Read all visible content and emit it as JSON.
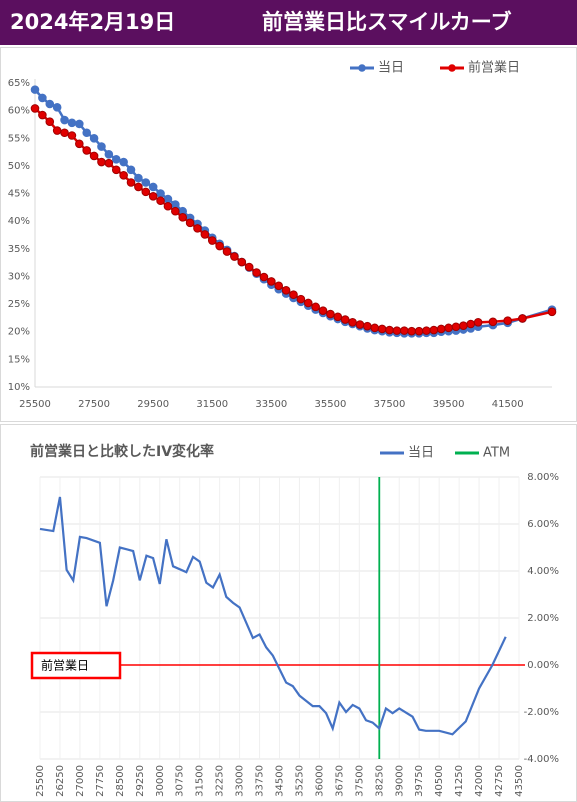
{
  "header": {
    "date": "2024年2月19日",
    "title": "前営業日比スマイルカーブ"
  },
  "chart_data": [
    {
      "type": "line",
      "markers": true,
      "grid": false,
      "legend": "top",
      "x": [
        25500,
        25750,
        26000,
        26250,
        26500,
        26750,
        27000,
        27250,
        27500,
        27750,
        28000,
        28250,
        28500,
        28750,
        29000,
        29250,
        29500,
        29750,
        30000,
        30250,
        30500,
        30750,
        31000,
        31250,
        31500,
        31750,
        32000,
        32250,
        32500,
        32750,
        33000,
        33250,
        33500,
        33750,
        34000,
        34250,
        34500,
        34750,
        35000,
        35250,
        35500,
        35750,
        36000,
        36250,
        36500,
        36750,
        37000,
        37250,
        37500,
        37750,
        38000,
        38250,
        38500,
        38750,
        39000,
        39250,
        39500,
        39750,
        40000,
        40250,
        40500,
        41000,
        41500,
        42000,
        43000
      ],
      "series": [
        {
          "name": "当日",
          "color": "#4472c4",
          "values": [
            63.8,
            62.3,
            61.2,
            60.6,
            58.3,
            57.8,
            57.6,
            56.0,
            55.0,
            53.5,
            52.1,
            51.2,
            50.7,
            49.3,
            47.8,
            47.0,
            46.2,
            45.0,
            44.0,
            43.0,
            41.8,
            40.6,
            39.5,
            38.3,
            37.0,
            35.9,
            34.8,
            33.7,
            32.6,
            31.6,
            30.5,
            29.5,
            28.5,
            27.7,
            26.9,
            26.1,
            25.4,
            24.7,
            24.0,
            23.4,
            22.8,
            22.3,
            21.8,
            21.4,
            21.0,
            20.6,
            20.3,
            20.1,
            19.9,
            19.8,
            19.7,
            19.7,
            19.7,
            19.8,
            19.8,
            20.0,
            20.1,
            20.2,
            20.4,
            20.6,
            20.9,
            21.2,
            21.6,
            22.4,
            24.0
          ]
        },
        {
          "name": "前営業日",
          "color": "#e00000",
          "values": [
            60.4,
            59.2,
            58.0,
            56.4,
            56.0,
            55.5,
            54.0,
            52.8,
            51.8,
            50.7,
            50.5,
            49.3,
            48.3,
            47.0,
            46.2,
            45.3,
            44.5,
            43.7,
            42.7,
            41.8,
            40.7,
            39.7,
            38.7,
            37.6,
            36.5,
            35.5,
            34.5,
            33.6,
            32.6,
            31.7,
            30.7,
            29.9,
            29.1,
            28.3,
            27.5,
            26.7,
            25.9,
            25.2,
            24.5,
            23.8,
            23.2,
            22.7,
            22.2,
            21.7,
            21.3,
            21.0,
            20.7,
            20.5,
            20.3,
            20.2,
            20.2,
            20.1,
            20.1,
            20.2,
            20.3,
            20.5,
            20.7,
            20.9,
            21.1,
            21.4,
            21.7,
            21.8,
            22.0,
            22.4,
            23.6
          ]
        }
      ],
      "xlim": [
        25500,
        43000
      ],
      "xticks": [
        25500,
        27500,
        29500,
        31500,
        33500,
        35500,
        37500,
        39500,
        41500
      ],
      "ylim": [
        10,
        65
      ],
      "yticks": [
        {
          "value": 10,
          "label": "10%"
        },
        {
          "value": 15,
          "label": "15%"
        },
        {
          "value": 20,
          "label": "20%"
        },
        {
          "value": 25,
          "label": "25%"
        },
        {
          "value": 30,
          "label": "30%"
        },
        {
          "value": 35,
          "label": "35%"
        },
        {
          "value": 40,
          "label": "40%"
        },
        {
          "value": 45,
          "label": "45%"
        },
        {
          "value": 50,
          "label": "50%"
        },
        {
          "value": 55,
          "label": "55%"
        },
        {
          "value": 60,
          "label": "60%"
        },
        {
          "value": 65,
          "label": "65%"
        }
      ]
    },
    {
      "type": "line",
      "markers": false,
      "grid": true,
      "legend": "top",
      "title": "前営業日と比較したIV変化率",
      "x": [
        25500,
        26000,
        26250,
        26500,
        26750,
        27000,
        27250,
        27750,
        28000,
        28250,
        28500,
        29000,
        29250,
        29500,
        29750,
        30000,
        30250,
        30500,
        31000,
        31250,
        31500,
        31750,
        32000,
        32250,
        32500,
        32750,
        33000,
        33500,
        33750,
        34000,
        34250,
        34750,
        35000,
        35250,
        35750,
        36000,
        36250,
        36500,
        36750,
        37000,
        37250,
        37500,
        37750,
        38000,
        38250,
        38500,
        38750,
        39000,
        39500,
        39750,
        40000,
        40500,
        41000,
        41500,
        42000,
        42500,
        43000
      ],
      "series": [
        {
          "name": "当日",
          "color": "#4472c4",
          "values": [
            5.79,
            5.7,
            7.15,
            4.05,
            3.6,
            5.45,
            5.4,
            5.2,
            2.5,
            3.6,
            5.0,
            4.85,
            3.6,
            4.65,
            4.55,
            3.45,
            5.35,
            4.2,
            3.95,
            4.6,
            4.4,
            3.5,
            3.3,
            3.85,
            2.9,
            2.65,
            2.45,
            1.15,
            1.3,
            0.75,
            0.4,
            -0.75,
            -0.9,
            -1.3,
            -1.75,
            -1.75,
            -2.05,
            -2.7,
            -1.6,
            -2.0,
            -1.7,
            -1.85,
            -2.35,
            -2.45,
            -2.7,
            -1.85,
            -2.05,
            -1.85,
            -2.2,
            -2.75,
            -2.8,
            -2.8,
            -2.95,
            -2.4,
            -1.0,
            0.0,
            1.2
          ]
        }
      ],
      "vlines": [
        {
          "name": "ATM",
          "x": 38250,
          "color": "#00b050"
        }
      ],
      "hlines": [
        {
          "label": "前営業日",
          "y": 0,
          "color": "#ff0000"
        }
      ],
      "xlim": [
        25500,
        43500
      ],
      "xticks": [
        25500,
        26250,
        27000,
        27750,
        28500,
        29250,
        30000,
        30750,
        31500,
        32250,
        33000,
        33750,
        34500,
        35250,
        36000,
        36750,
        37500,
        38250,
        39000,
        39750,
        40500,
        41250,
        42000,
        42750,
        43500
      ],
      "ylim": [
        -4,
        8
      ],
      "yticks": [
        {
          "value": -4,
          "label": "-4.00%"
        },
        {
          "value": -2,
          "label": "-2.00%"
        },
        {
          "value": 0,
          "label": "0.00%"
        },
        {
          "value": 2,
          "label": "2.00%"
        },
        {
          "value": 4,
          "label": "4.00%"
        },
        {
          "value": 6,
          "label": "6.00%"
        },
        {
          "value": 8,
          "label": "8.00%"
        }
      ]
    }
  ]
}
